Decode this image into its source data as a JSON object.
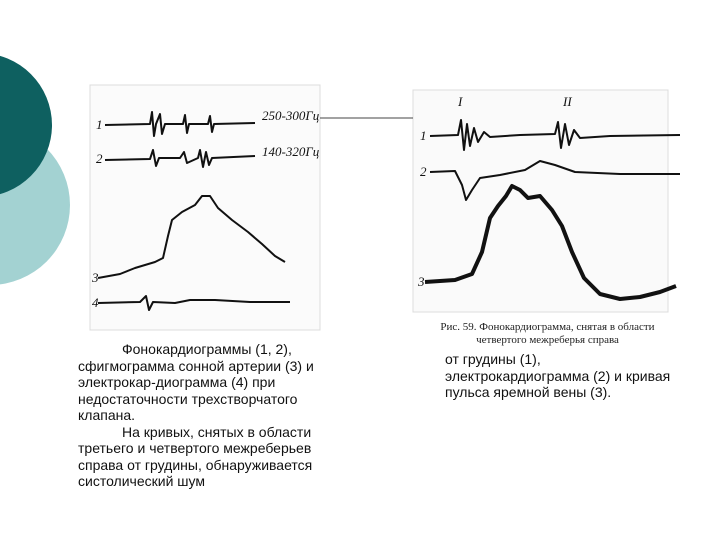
{
  "left_figure": {
    "trace_labels": [
      "1",
      "2",
      "3",
      "4"
    ],
    "frequency_labels": [
      "250-300Гц",
      "140-320Гц"
    ]
  },
  "left_text": {
    "paragraphs": [
      "Фонокардиограммы (1, 2), сфигмограмма сонной артерии (3) и электрокар-диограмма (4) при недостаточности трехстворчатого клапана.",
      "На кривых, снятых в области третьего и четвертого межреберьев справа от грудины, обнаруживается систолический шум"
    ]
  },
  "right_figure": {
    "tone_labels": [
      "I",
      "II"
    ],
    "trace_labels": [
      "1",
      "2",
      "3"
    ],
    "caption": "Рис. 59. Фонокардиограмма, снятая в области четвертого межреберья справа"
  },
  "right_text": {
    "paragraph": "от грудины (1), электрокардиограмма (2) и кривая пульса яремной вены (3)."
  }
}
